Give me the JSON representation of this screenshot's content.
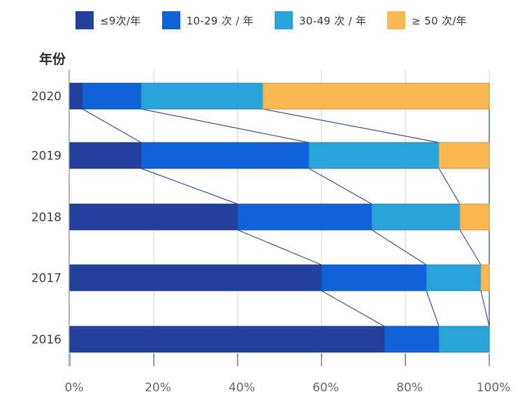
{
  "chart_data": {
    "type": "bar",
    "orientation": "horizontal",
    "stacked": true,
    "value_unit": "percent",
    "title": "",
    "ylabel": "年份",
    "categories": [
      "2020",
      "2019",
      "2018",
      "2017",
      "2016"
    ],
    "series": [
      {
        "name": "≤9次/年",
        "color": "#22409c",
        "values": [
          3,
          17,
          40,
          60,
          75
        ]
      },
      {
        "name": "10-29 次 / 年",
        "color": "#1161d8",
        "values": [
          14,
          40,
          32,
          25,
          13
        ]
      },
      {
        "name": "30-49 次 / 年",
        "color": "#29a4db",
        "values": [
          29,
          31,
          21,
          13,
          12
        ]
      },
      {
        "name": "≥ 50 次/年",
        "color": "#f9b851",
        "values": [
          54,
          12,
          7,
          2,
          0
        ]
      }
    ],
    "x_ticks": [
      "0%",
      "20%",
      "40%",
      "60%",
      "80%",
      "100%"
    ],
    "xlim": [
      0,
      100
    ],
    "grid": true,
    "legend_position": "top",
    "connectors": true,
    "connector_color": "#2b3e8c",
    "axis_color": "#aeb6c2",
    "gridline_color": "#e7e9ee",
    "tick_color": "#9099a8",
    "label_color": "#3a3e45",
    "tick_label_color": "#63666d"
  }
}
